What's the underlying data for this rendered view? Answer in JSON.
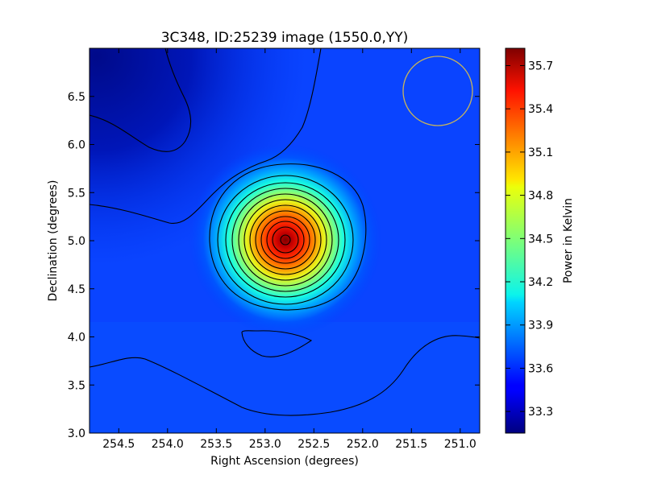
{
  "chart_data": {
    "type": "heatmap",
    "title": "3C348, ID:25239 image (1550.0,YY)",
    "xlabel": "Right Ascension (degrees)",
    "ylabel": "Declination (degrees)",
    "colorbar_label": "Power in Kelvin",
    "xlim": [
      254.8,
      250.8
    ],
    "ylim": [
      3.0,
      7.0
    ],
    "x_ticks": [
      254.5,
      254.0,
      253.5,
      253.0,
      252.5,
      252.0,
      251.5,
      251.0
    ],
    "x_tick_labels": [
      "254.5",
      "254.0",
      "253.5",
      "253.0",
      "252.5",
      "252.0",
      "251.5",
      "251.0"
    ],
    "y_ticks": [
      3.0,
      3.5,
      4.0,
      4.5,
      5.0,
      5.5,
      6.0,
      6.5
    ],
    "y_tick_labels": [
      "3.0",
      "3.5",
      "4.0",
      "4.5",
      "5.0",
      "5.5",
      "6.0",
      "6.5"
    ],
    "colorbar_range": [
      33.15,
      35.82
    ],
    "colorbar_ticks": [
      33.3,
      33.6,
      33.9,
      34.2,
      34.5,
      34.8,
      35.1,
      35.4,
      35.7
    ],
    "colorbar_tick_labels": [
      "33.3",
      "33.6",
      "33.9",
      "34.2",
      "34.5",
      "34.8",
      "35.1",
      "35.4",
      "35.7"
    ],
    "colormap": "jet",
    "background_level": 33.55,
    "source": {
      "ra": 252.78,
      "dec": 5.0,
      "peak": 35.8,
      "sigma_deg": 0.32
    },
    "beam_circle": {
      "ra": 251.23,
      "dec": 6.55,
      "radius_deg": 0.36,
      "color": "#c8b45a"
    },
    "grid": false,
    "legend": "none"
  }
}
